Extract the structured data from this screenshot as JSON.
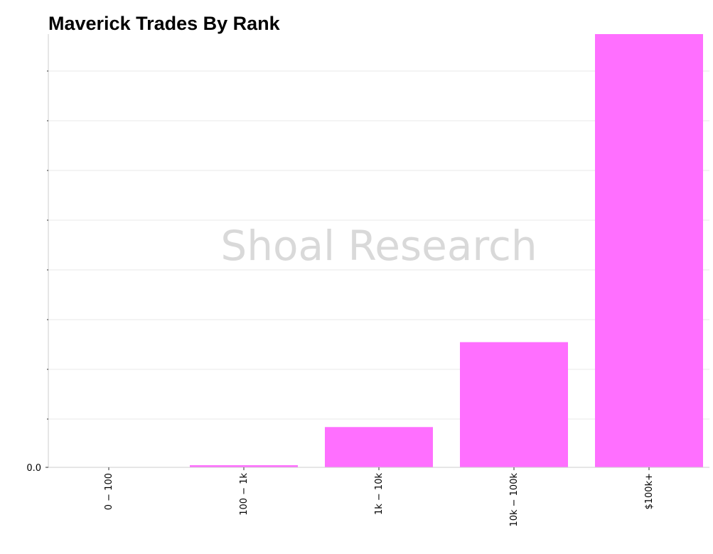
{
  "chart_data": {
    "type": "bar",
    "title": "Maverick Trades By Rank",
    "watermark": "Shoal Research",
    "categories": [
      "$0-$100",
      "$100-$1k",
      "$1k-$10k",
      "$10k-$100k",
      "$100k+"
    ],
    "category_labels": [
      "0 − 100",
      "100 − 1k",
      "1k − 10k",
      "10k − 100k",
      "$100k+"
    ],
    "values": [
      0.0,
      0.5,
      9.3,
      28.9,
      100.0
    ],
    "y_tick_label": "0.0",
    "ylim": [
      0,
      100
    ],
    "grid": true,
    "colors": {
      "bar": "#ff6fff",
      "grid": "#e8e8e8",
      "axis": "#cccccc"
    },
    "xlabel": "",
    "ylabel": ""
  }
}
